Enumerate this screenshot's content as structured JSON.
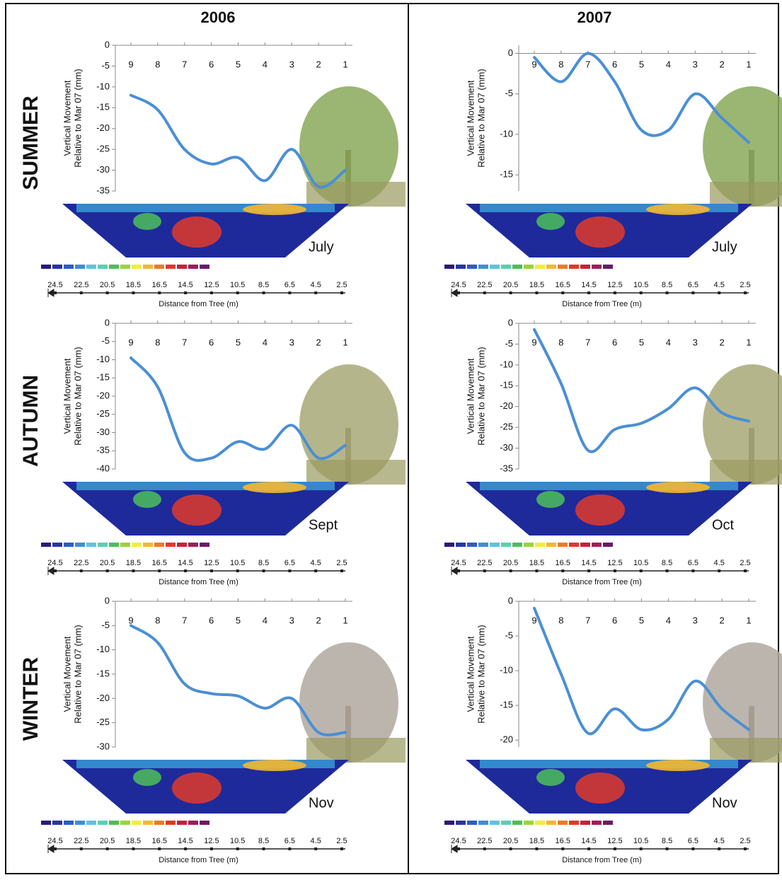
{
  "columns": [
    "2006",
    "2007"
  ],
  "rows": [
    "SUMMER",
    "AUTUMN",
    "WINTER"
  ],
  "chart_data": [
    {
      "type": "line",
      "categories": [
        "9",
        "8",
        "7",
        "6",
        "5",
        "4",
        "3",
        "2",
        "1"
      ],
      "ylabel": [
        "Vertical Movement",
        "Relative to Mar 07 (mm)"
      ],
      "series": [
        {
          "color": "#4a8fd4",
          "values": [
            -12,
            -15.5,
            -25,
            -28.5,
            -27,
            -32.5,
            -25,
            -34,
            -30
          ]
        }
      ],
      "ylim": [
        -35,
        0
      ],
      "yticks": [
        0,
        -5,
        -10,
        -15,
        -20,
        -25,
        -30,
        -35
      ],
      "month": "July",
      "distance_ticks": [
        24.5,
        22.5,
        20.5,
        18.5,
        16.5,
        14.5,
        12.5,
        10.5,
        8.5,
        6.5,
        4.5,
        2.5
      ],
      "distance_label": "Distance from Tree (m)"
    },
    {
      "type": "line",
      "categories": [
        "9",
        "8",
        "7",
        "6",
        "5",
        "4",
        "3",
        "2",
        "1"
      ],
      "ylabel": [
        "Vertical Movement",
        "Relative to Mar 07 (mm)"
      ],
      "series": [
        {
          "color": "#4a8fd4",
          "values": [
            -0.5,
            -3.5,
            0,
            -3.5,
            -9.5,
            -9.5,
            -5,
            -8,
            -11
          ]
        }
      ],
      "ylim": [
        -17,
        1
      ],
      "yticks": [
        0,
        -5,
        -10,
        -15
      ],
      "month": "July",
      "distance_ticks": [
        24.5,
        22.5,
        20.5,
        18.5,
        16.5,
        14.5,
        12.5,
        10.5,
        8.5,
        6.5,
        4.5,
        2.5
      ],
      "distance_label": "Distance from Tree (m)"
    },
    {
      "type": "line",
      "categories": [
        "9",
        "8",
        "7",
        "6",
        "5",
        "4",
        "3",
        "2",
        "1"
      ],
      "ylabel": [
        "Vertical Movement",
        "Relative to Mar 07 (mm)"
      ],
      "series": [
        {
          "color": "#4a8fd4",
          "values": [
            -9.5,
            -17.5,
            -35.5,
            -37,
            -32.5,
            -34.5,
            -28,
            -37,
            -33.5
          ]
        }
      ],
      "ylim": [
        -40,
        0
      ],
      "yticks": [
        0,
        -5,
        -10,
        -15,
        -20,
        -25,
        -30,
        -35,
        -40
      ],
      "month": "Sept",
      "distance_ticks": [
        24.5,
        22.5,
        20.5,
        18.5,
        16.5,
        14.5,
        12.5,
        10.5,
        8.5,
        6.5,
        4.5,
        2.5
      ],
      "distance_label": "Distance from Tree (m)"
    },
    {
      "type": "line",
      "categories": [
        "9",
        "8",
        "7",
        "6",
        "5",
        "4",
        "3",
        "2",
        "1"
      ],
      "ylabel": [
        "Vertical Movement",
        "Relative to Mar 07 (mm)"
      ],
      "series": [
        {
          "color": "#4a8fd4",
          "values": [
            -1.5,
            -14.5,
            -30.5,
            -25.5,
            -24,
            -20.5,
            -15.5,
            -21.5,
            -23.5
          ]
        }
      ],
      "ylim": [
        -35,
        0
      ],
      "yticks": [
        0,
        -5,
        -10,
        -15,
        -20,
        -25,
        -30,
        -35
      ],
      "month": "Oct",
      "distance_ticks": [
        24.5,
        22.5,
        20.5,
        18.5,
        16.5,
        14.5,
        12.5,
        10.5,
        8.5,
        6.5,
        4.5,
        2.5
      ],
      "distance_label": "Distance from Tree (m)"
    },
    {
      "type": "line",
      "categories": [
        "9",
        "8",
        "7",
        "6",
        "5",
        "4",
        "3",
        "2",
        "1"
      ],
      "ylabel": [
        "Vertical Movement",
        "Relative to Mar 07 (mm)"
      ],
      "series": [
        {
          "color": "#4a8fd4",
          "values": [
            -5,
            -8.5,
            -17,
            -19,
            -19.5,
            -22,
            -20,
            -27,
            -27
          ]
        }
      ],
      "ylim": [
        -30,
        0
      ],
      "yticks": [
        0,
        -5,
        -10,
        -15,
        -20,
        -25,
        -30
      ],
      "month": "Nov",
      "distance_ticks": [
        24.5,
        22.5,
        20.5,
        18.5,
        16.5,
        14.5,
        12.5,
        10.5,
        8.5,
        6.5,
        4.5,
        2.5
      ],
      "distance_label": "Distance from Tree (m)"
    },
    {
      "type": "line",
      "categories": [
        "9",
        "8",
        "7",
        "6",
        "5",
        "4",
        "3",
        "2",
        "1"
      ],
      "ylabel": [
        "Vertical Movement",
        "Relative to Mar 07 (mm)"
      ],
      "series": [
        {
          "color": "#4a8fd4",
          "values": [
            -1,
            -10.5,
            -19,
            -15.5,
            -18.5,
            -17,
            -11.5,
            -15.5,
            -18.5
          ]
        }
      ],
      "ylim": [
        -21,
        0
      ],
      "yticks": [
        0,
        -5,
        -10,
        -15,
        -20
      ],
      "month": "Nov",
      "distance_ticks": [
        24.5,
        22.5,
        20.5,
        18.5,
        16.5,
        14.5,
        12.5,
        10.5,
        8.5,
        6.5,
        4.5,
        2.5
      ],
      "distance_label": "Distance from Tree (m)"
    }
  ]
}
